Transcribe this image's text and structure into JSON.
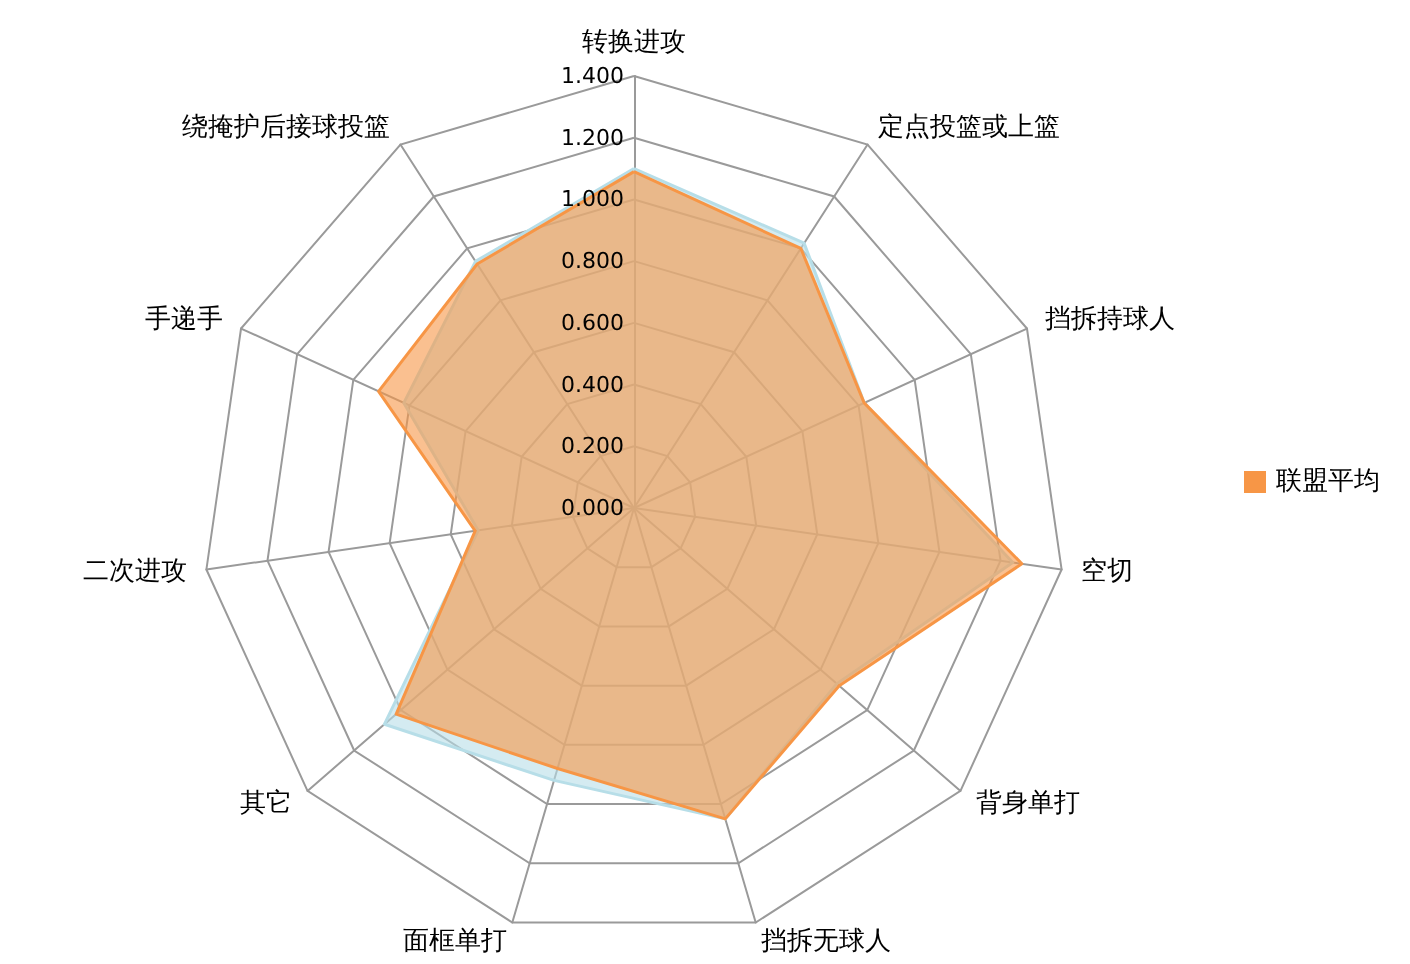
{
  "chart_data": {
    "type": "radar",
    "categories": [
      "转换进攻",
      "定点投篮或上篮",
      "挡拆持球人",
      "空切",
      "背身单打",
      "挡拆无球人",
      "面框单打",
      "其它",
      "二次进攻",
      "手递手",
      "绕掩护后接球投篮"
    ],
    "series": [
      {
        "color": "#b7dee8",
        "values": [
          1.1,
          1.02,
          0.82,
          1.24,
          0.87,
          1.05,
          0.92,
          1.07,
          0.51,
          0.82,
          0.95
        ]
      },
      {
        "name": "联盟平均",
        "color": "#f79646",
        "values": [
          1.09,
          1.0,
          0.82,
          1.27,
          0.88,
          1.05,
          0.88,
          1.02,
          0.52,
          0.91,
          0.94
        ]
      }
    ],
    "ylim": [
      0,
      1.4
    ],
    "yticks": [
      {
        "value": 0,
        "label": "0.000"
      },
      {
        "value": 0.2,
        "label": "0.200"
      },
      {
        "value": 0.4,
        "label": "0.400"
      },
      {
        "value": 0.6,
        "label": "0.600"
      },
      {
        "value": 0.8,
        "label": "0.800"
      },
      {
        "value": 1.0,
        "label": "1.000"
      },
      {
        "value": 1.2,
        "label": "1.200"
      },
      {
        "value": 1.4,
        "label": "1.400"
      }
    ],
    "legend": "right",
    "grid": true
  }
}
